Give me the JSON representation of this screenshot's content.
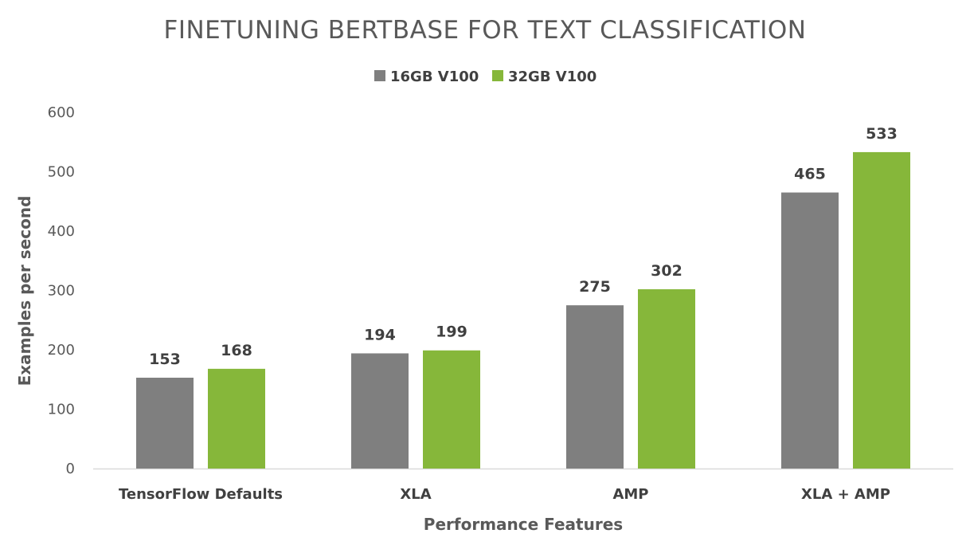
{
  "chart_data": {
    "type": "bar",
    "title": "FINETUNING BERTBASE FOR TEXT CLASSIFICATION",
    "xlabel": "Performance Features",
    "ylabel": "Examples per second",
    "categories": [
      "TensorFlow Defaults",
      "XLA",
      "AMP",
      "XLA + AMP"
    ],
    "series": [
      {
        "name": "16GB V100",
        "color": "#7f7f7f",
        "values": [
          153,
          194,
          275,
          465
        ]
      },
      {
        "name": "32GB V100",
        "color": "#86b73a",
        "values": [
          168,
          199,
          302,
          533
        ]
      }
    ],
    "ylim": [
      0,
      600
    ],
    "yticks": [
      0,
      100,
      200,
      300,
      400,
      500,
      600
    ],
    "grid": false,
    "legend_position": "top-center",
    "data_labels": true
  }
}
